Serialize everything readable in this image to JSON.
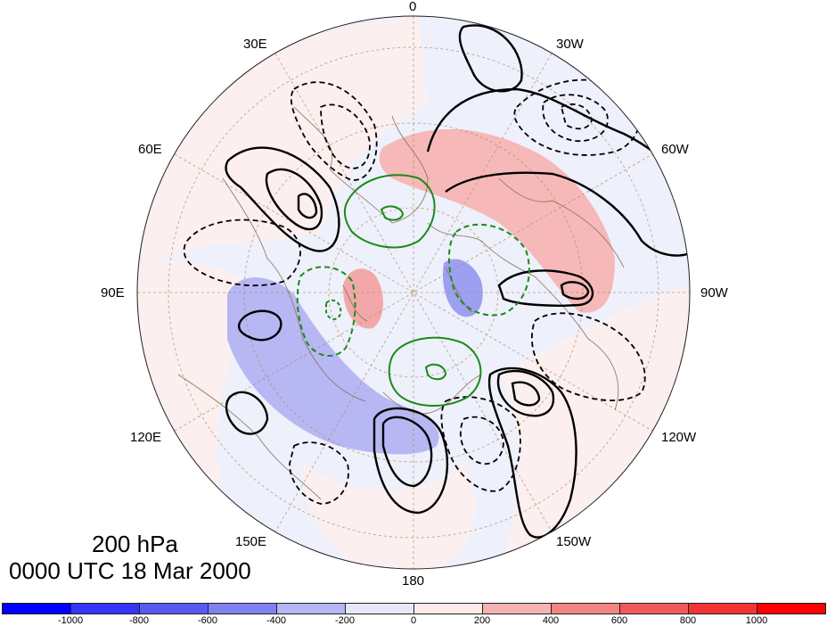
{
  "map": {
    "projection": "north-polar-stereographic",
    "level_label": "200 hPa",
    "time_label": "0000 UTC 18 Mar 2000",
    "longitude_labels": [
      "0",
      "30W",
      "60W",
      "90W",
      "120W",
      "150W",
      "180",
      "150E",
      "120E",
      "90E",
      "60E",
      "30E"
    ],
    "shading": {
      "colors": {
        "strong_negative": "#7f7fef",
        "negative": "#b9b9f7",
        "weak_negative": "#eeeefc",
        "weak_positive": "#fcefef",
        "positive": "#f7b9b9",
        "strong_positive": "#f09090"
      }
    },
    "contour_colors": {
      "solid": "#000000",
      "dashed": "#000000",
      "green": "#1a8a1a",
      "coast": "#8a7055",
      "grid": "#b08a50"
    }
  },
  "colorbar": {
    "tick_labels": [
      "-1000",
      "-800",
      "-600",
      "-400",
      "-200",
      "0",
      "200",
      "400",
      "600",
      "800",
      "1000"
    ],
    "colors": [
      "#0000ff",
      "#3535f6",
      "#5a5af2",
      "#8080f0",
      "#b6b6f5",
      "#e8e8fb",
      "#fdeaea",
      "#f6b3b3",
      "#f28484",
      "#f05a5a",
      "#f23434",
      "#ff0000"
    ]
  }
}
